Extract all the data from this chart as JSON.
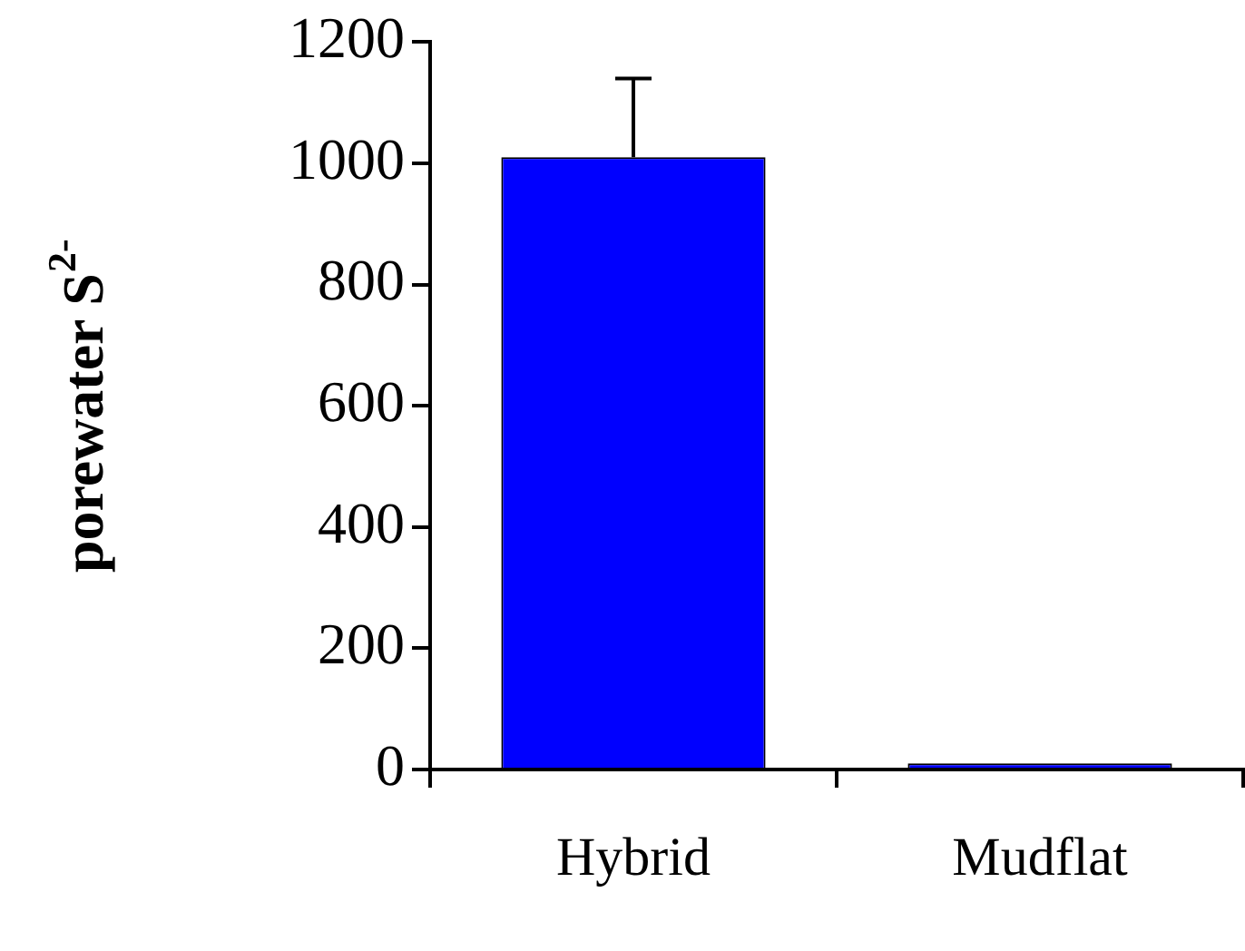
{
  "chart_data": {
    "type": "bar",
    "ylabel": "porewater S$^{2-}$",
    "categories": [
      "Hybrid",
      "Mudflat"
    ],
    "values": [
      1010,
      10
    ],
    "color": "#0000ff",
    "errors": [
      [
        1010,
        1140
      ],
      null
    ],
    "ylim": [
      0,
      1200
    ],
    "yticks": [
      0,
      200,
      400,
      600,
      800,
      1000,
      1200
    ],
    "grid": false,
    "legend": false
  }
}
